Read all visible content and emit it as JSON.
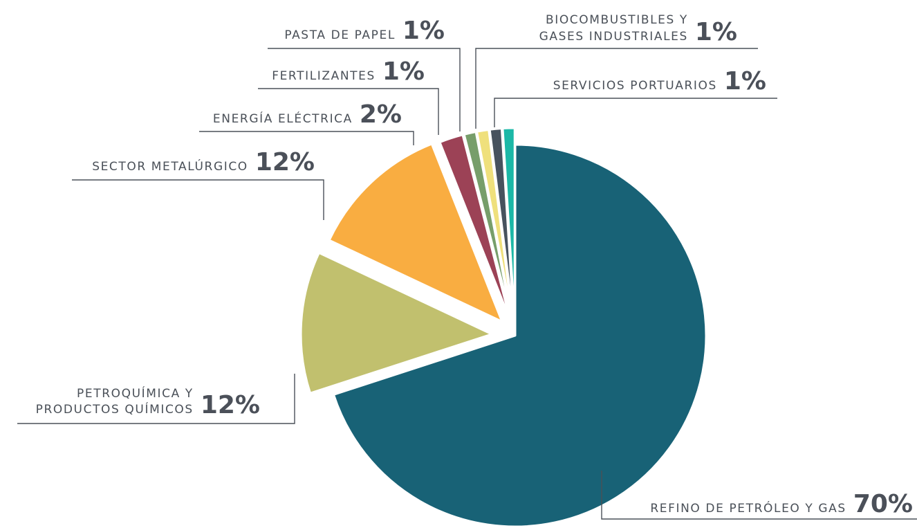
{
  "chart_data": {
    "type": "pie",
    "start_category": "Refino de petróleo y gas",
    "direction": "clockwise",
    "slices": [
      {
        "name": "REFINO DE PETRÓLEO Y GAS",
        "value": 70,
        "label": "70%",
        "color": "#186276"
      },
      {
        "name": "PETROQUÍMICA Y PRODUCTOS QUÍMICOS",
        "value": 12,
        "label": "12%",
        "color": "#c1c06e"
      },
      {
        "name": "SECTOR METALÚRGICO",
        "value": 12,
        "label": "12%",
        "color": "#f9ad41"
      },
      {
        "name": "ENERGÍA ELÉCTRICA",
        "value": 2,
        "label": "2%",
        "color": "#9c4256"
      },
      {
        "name": "FERTILIZANTES",
        "value": 1,
        "label": "1%",
        "color": "#779e6a"
      },
      {
        "name": "PASTA DE PAPEL",
        "value": 1,
        "label": "1%",
        "color": "#efe07c"
      },
      {
        "name": "BIOCOMBUSTIBLES Y GASES INDUSTRIALES",
        "value": 1,
        "label": "1%",
        "color": "#47525e"
      },
      {
        "name": "SERVICIOS PORTUARIOS",
        "value": 1,
        "label": "1%",
        "color": "#1bb8a7"
      }
    ],
    "labels": [
      {
        "lines": [
          "REFINO DE PETRÓLEO Y GAS"
        ],
        "pct": "70%"
      },
      {
        "lines": [
          "PETROQUÍMICA Y",
          "PRODUCTOS QUÍMICOS"
        ],
        "pct": "12%"
      },
      {
        "lines": [
          "SECTOR METALÚRGICO"
        ],
        "pct": "12%"
      },
      {
        "lines": [
          "ENERGÍA ELÉCTRICA"
        ],
        "pct": "2%"
      },
      {
        "lines": [
          "FERTILIZANTES"
        ],
        "pct": "1%"
      },
      {
        "lines": [
          "PASTA DE PAPEL"
        ],
        "pct": "1%"
      },
      {
        "lines": [
          "BIOCOMBUSTIBLES Y",
          "GASES INDUSTRIALES"
        ],
        "pct": "1%"
      },
      {
        "lines": [
          "SERVICIOS PORTUARIOS"
        ],
        "pct": "1%"
      }
    ],
    "legend": "none",
    "grid": false
  }
}
